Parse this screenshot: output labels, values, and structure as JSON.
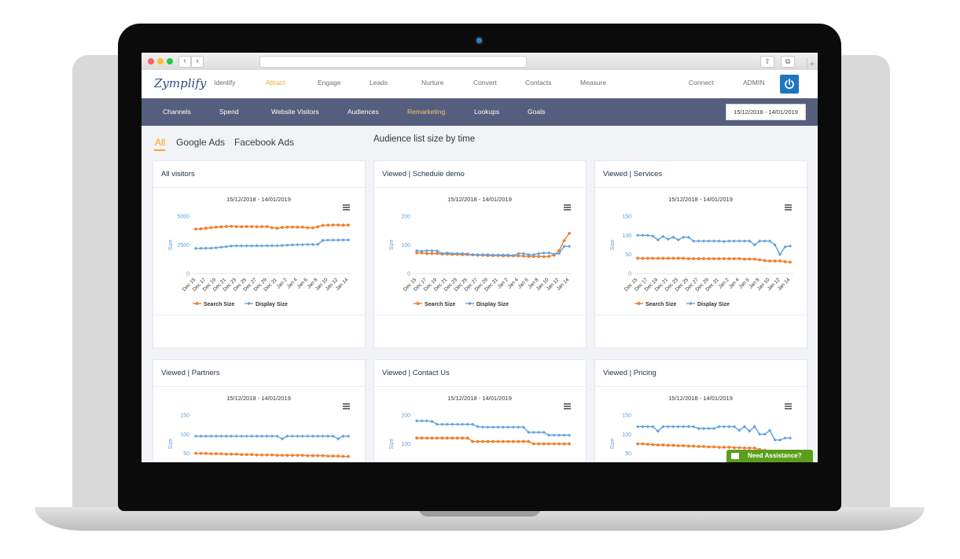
{
  "browser": {
    "back": "‹",
    "forward": "›",
    "share_icon": "share-icon",
    "tabs_icon": "tabs-icon",
    "plus": "+"
  },
  "app": {
    "logo": "Zymplify",
    "nav": [
      "Identify",
      "Attract",
      "Engage",
      "Leads",
      "Nurture",
      "Convert",
      "Contacts",
      "Measure"
    ],
    "active_nav": "Attract",
    "connect": "Connect",
    "admin": "ADMIN"
  },
  "subnav": {
    "items": [
      "Channels",
      "Spend",
      "Website Visitors",
      "Audiences",
      "Remarketing",
      "Lookups",
      "Goals"
    ],
    "active": "Remarketing",
    "date_range": "15/12/2018 - 14/01/2019"
  },
  "filters": {
    "tabs": [
      "All",
      "Google Ads",
      "Facebook Ads"
    ],
    "active": "All"
  },
  "section_title": "Audience list size by time",
  "assistance": "Need Assistance?",
  "colors": {
    "search": "#f07e2e",
    "display": "#5fa0e0",
    "subnav": "#555f7d",
    "accent": "#f5a623"
  },
  "chart_data": [
    {
      "title": "All visitors",
      "subtitle": "15/12/2018 - 14/01/2019",
      "type": "line",
      "ylabel": "Size",
      "yticks": [
        "0",
        "2500",
        "5000"
      ],
      "ylim": [
        0,
        5000
      ],
      "xticks": [
        "Dec 15",
        "Dec 17",
        "Dec 19",
        "Dec 21",
        "Dec 23",
        "Dec 25",
        "Dec 27",
        "Dec 29",
        "Dec 31",
        "Jan 2",
        "Jan 4",
        "Jan 6",
        "Jan 8",
        "Jan 10",
        "Jan 12",
        "Jan 14"
      ],
      "series": [
        {
          "name": "Search Size",
          "values": [
            3880,
            3900,
            3950,
            4000,
            4050,
            4080,
            4100,
            4120,
            4100,
            4080,
            4100,
            4100,
            4080,
            4090,
            4100,
            4000,
            3950,
            4020,
            4050,
            4060,
            4050,
            4050,
            4000,
            3980,
            4080,
            4200,
            4220,
            4230,
            4230,
            4220,
            4230
          ]
        },
        {
          "name": "Display Size",
          "values": [
            2200,
            2200,
            2210,
            2220,
            2250,
            2300,
            2350,
            2400,
            2420,
            2420,
            2420,
            2420,
            2430,
            2420,
            2430,
            2430,
            2430,
            2450,
            2480,
            2500,
            2520,
            2520,
            2540,
            2540,
            2550,
            2900,
            2920,
            2920,
            2920,
            2930,
            2930
          ]
        }
      ]
    },
    {
      "title": "Viewed | Schedule demo",
      "subtitle": "15/12/2018 - 14/01/2019",
      "type": "line",
      "ylabel": "Size",
      "yticks": [
        "0",
        "100",
        "200"
      ],
      "ylim": [
        0,
        200
      ],
      "xticks": [
        "Dec 15",
        "Dec 17",
        "Dec 19",
        "Dec 21",
        "Dec 23",
        "Dec 25",
        "Dec 27",
        "Dec 29",
        "Dec 31",
        "Jan 2",
        "Jan 4",
        "Jan 6",
        "Jan 8",
        "Jan 10",
        "Jan 12",
        "Jan 14"
      ],
      "series": [
        {
          "name": "Search Size",
          "values": [
            72,
            72,
            70,
            70,
            70,
            68,
            68,
            67,
            67,
            66,
            66,
            65,
            64,
            64,
            63,
            63,
            63,
            62,
            62,
            62,
            62,
            61,
            60,
            60,
            60,
            59,
            60,
            64,
            80,
            115,
            140
          ]
        },
        {
          "name": "Display Size",
          "values": [
            80,
            78,
            80,
            80,
            79,
            70,
            72,
            70,
            70,
            70,
            69,
            66,
            66,
            66,
            66,
            65,
            65,
            65,
            65,
            63,
            70,
            70,
            66,
            66,
            70,
            72,
            72,
            68,
            70,
            95,
            95
          ]
        }
      ]
    },
    {
      "title": "Viewed | Services",
      "subtitle": "15/12/2018 - 14/01/2019",
      "type": "line",
      "ylabel": "Size",
      "yticks": [
        "0",
        "50",
        "100",
        "150"
      ],
      "ylim": [
        0,
        150
      ],
      "xticks": [
        "Dec 15",
        "Dec 17",
        "Dec 19",
        "Dec 21",
        "Dec 23",
        "Dec 25",
        "Dec 27",
        "Dec 29",
        "Dec 31",
        "Jan 2",
        "Jan 4",
        "Jan 6",
        "Jan 8",
        "Jan 10",
        "Jan 12",
        "Jan 14"
      ],
      "series": [
        {
          "name": "Search Size",
          "values": [
            40,
            40,
            40,
            40,
            40,
            40,
            40,
            40,
            40,
            40,
            39,
            39,
            39,
            39,
            39,
            39,
            39,
            39,
            39,
            39,
            39,
            38,
            38,
            38,
            36,
            34,
            33,
            33,
            33,
            31,
            30
          ]
        },
        {
          "name": "Display Size",
          "values": [
            100,
            100,
            100,
            98,
            88,
            97,
            90,
            95,
            88,
            95,
            95,
            85,
            85,
            85,
            85,
            85,
            85,
            84,
            85,
            85,
            85,
            85,
            85,
            75,
            85,
            85,
            85,
            75,
            50,
            70,
            72
          ]
        }
      ]
    },
    {
      "title": "Viewed | Partners",
      "subtitle": "15/12/2018 - 14/01/2019",
      "type": "line",
      "ylabel": "Size",
      "yticks": [
        "50",
        "100",
        "150"
      ],
      "ylim": [
        0,
        150
      ],
      "xticks": [],
      "series": [
        {
          "name": "Search Size",
          "values": [
            50,
            50,
            50,
            49,
            49,
            49,
            48,
            48,
            48,
            47,
            47,
            47,
            46,
            46,
            46,
            46,
            45,
            45,
            45,
            45,
            45,
            45,
            44,
            44,
            44,
            44,
            43,
            43,
            43,
            42,
            42
          ]
        },
        {
          "name": "Display Size",
          "values": [
            95,
            95,
            95,
            95,
            95,
            95,
            95,
            95,
            95,
            95,
            95,
            95,
            95,
            95,
            95,
            95,
            95,
            88,
            95,
            95,
            95,
            95,
            95,
            95,
            95,
            95,
            95,
            95,
            88,
            95,
            95
          ]
        }
      ]
    },
    {
      "title": "Viewed | Contact Us",
      "subtitle": "15/12/2018 - 14/01/2019",
      "type": "line",
      "ylabel": "Size",
      "yticks": [
        "100",
        "200"
      ],
      "ylim": [
        0,
        200
      ],
      "xticks": [],
      "series": [
        {
          "name": "Search Size",
          "values": [
            120,
            120,
            120,
            120,
            120,
            120,
            120,
            120,
            120,
            120,
            120,
            108,
            108,
            108,
            108,
            108,
            108,
            108,
            108,
            108,
            108,
            108,
            108,
            100,
            100,
            100,
            100,
            100,
            100,
            100,
            100
          ]
        },
        {
          "name": "Display Size",
          "values": [
            180,
            180,
            180,
            178,
            168,
            168,
            168,
            168,
            168,
            168,
            168,
            168,
            160,
            158,
            158,
            158,
            158,
            158,
            158,
            158,
            158,
            158,
            140,
            140,
            140,
            140,
            130,
            130,
            130,
            130,
            130
          ]
        }
      ]
    },
    {
      "title": "Viewed | Pricing",
      "subtitle": "15/12/2018 - 14/01/2019",
      "type": "line",
      "ylabel": "Size",
      "yticks": [
        "50",
        "100",
        "150"
      ],
      "ylim": [
        0,
        150
      ],
      "xticks": [],
      "series": [
        {
          "name": "Search Size",
          "values": [
            75,
            75,
            74,
            73,
            72,
            72,
            71,
            71,
            70,
            70,
            69,
            69,
            68,
            68,
            67,
            67,
            66,
            66,
            66,
            65,
            65,
            64,
            64,
            64,
            60,
            58,
            56,
            55,
            55,
            54,
            54
          ]
        },
        {
          "name": "Display Size",
          "values": [
            120,
            120,
            120,
            120,
            108,
            120,
            120,
            120,
            120,
            120,
            120,
            120,
            115,
            115,
            115,
            115,
            120,
            120,
            120,
            120,
            110,
            120,
            108,
            120,
            100,
            100,
            110,
            85,
            85,
            90,
            90
          ]
        }
      ]
    }
  ]
}
